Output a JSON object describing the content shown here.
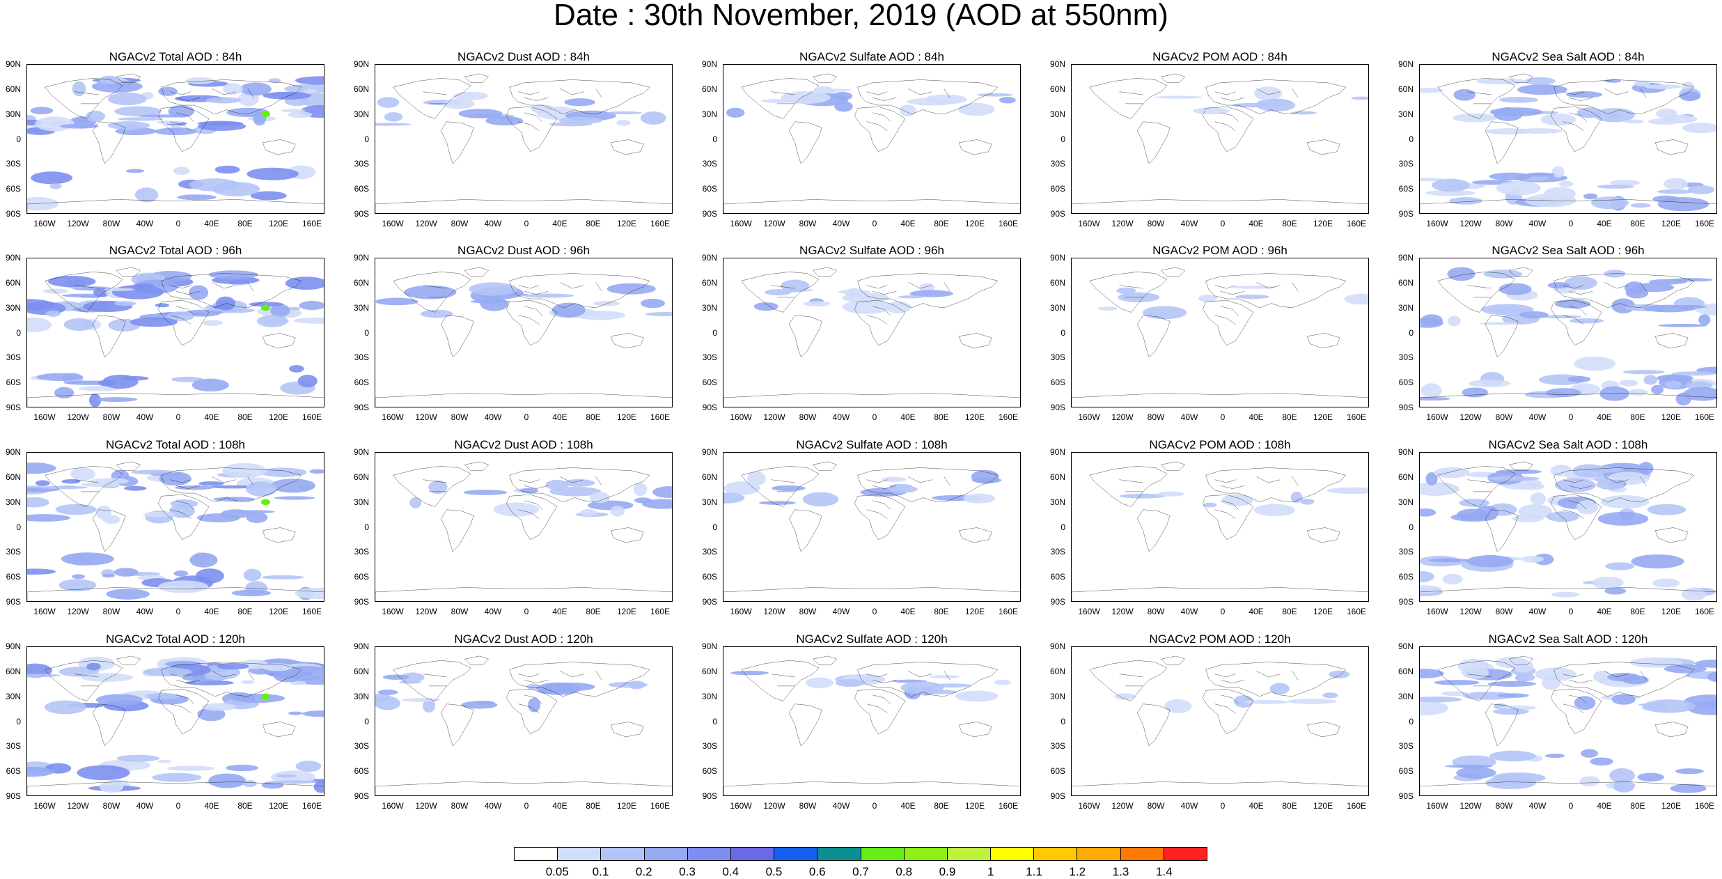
{
  "title": "Date : 30th November, 2019 (AOD at 550nm)",
  "lat_labels": [
    "90N",
    "60N",
    "30N",
    "0",
    "30S",
    "60S",
    "90S"
  ],
  "lon_labels": [
    "160W",
    "120W",
    "80W",
    "40W",
    "0",
    "40E",
    "80E",
    "120E",
    "160E"
  ],
  "panels": [
    {
      "title": "NGACv2 Total AOD : 84h",
      "kind": "total"
    },
    {
      "title": "NGACv2 Dust AOD : 84h",
      "kind": "dust"
    },
    {
      "title": "NGACv2 Sulfate AOD : 84h",
      "kind": "sulfate"
    },
    {
      "title": "NGACv2 POM AOD : 84h",
      "kind": "pom"
    },
    {
      "title": "NGACv2 Sea Salt AOD : 84h",
      "kind": "seasalt"
    },
    {
      "title": "NGACv2 Total AOD : 96h",
      "kind": "total"
    },
    {
      "title": "NGACv2 Dust AOD : 96h",
      "kind": "dust"
    },
    {
      "title": "NGACv2 Sulfate AOD : 96h",
      "kind": "sulfate"
    },
    {
      "title": "NGACv2 POM AOD : 96h",
      "kind": "pom"
    },
    {
      "title": "NGACv2 Sea Salt AOD : 96h",
      "kind": "seasalt"
    },
    {
      "title": "NGACv2 Total AOD : 108h",
      "kind": "total"
    },
    {
      "title": "NGACv2 Dust AOD : 108h",
      "kind": "dust"
    },
    {
      "title": "NGACv2 Sulfate AOD : 108h",
      "kind": "sulfate"
    },
    {
      "title": "NGACv2 POM AOD : 108h",
      "kind": "pom"
    },
    {
      "title": "NGACv2 Sea Salt AOD : 108h",
      "kind": "seasalt"
    },
    {
      "title": "NGACv2 Total AOD : 120h",
      "kind": "total"
    },
    {
      "title": "NGACv2 Dust AOD : 120h",
      "kind": "dust"
    },
    {
      "title": "NGACv2 Sulfate AOD : 120h",
      "kind": "sulfate"
    },
    {
      "title": "NGACv2 POM AOD : 120h",
      "kind": "pom"
    },
    {
      "title": "NGACv2 Sea Salt  AOD : 120h",
      "kind": "seasalt"
    }
  ],
  "colorbar": {
    "labels": [
      "0.05",
      "0.1",
      "0.2",
      "0.3",
      "0.4",
      "0.5",
      "0.6",
      "0.7",
      "0.8",
      "0.9",
      "1",
      "1.1",
      "1.2",
      "1.3",
      "1.4"
    ],
    "colors": [
      "#ffffff",
      "#d2ddfa",
      "#b4c4f6",
      "#96aaf2",
      "#7c8ff0",
      "#6a6ae8",
      "#1560f0",
      "#0a9090",
      "#64ee14",
      "#8cf014",
      "#bef03c",
      "#ffff00",
      "#ffc800",
      "#ffaa00",
      "#ff7800",
      "#ff2020"
    ]
  }
}
